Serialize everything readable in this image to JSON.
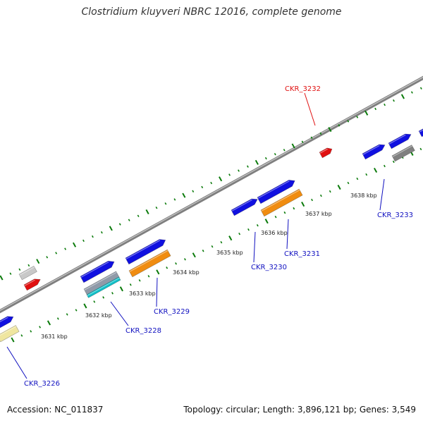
{
  "title": "Clostridium kluyveri NBRC 12016, complete genome",
  "footer": {
    "accession": "Accession: NC_011837",
    "info": "Topology: circular; Length: 3,896,121 bp; Genes: 3,549"
  },
  "kbp_labels": [
    "3631 kbp",
    "3632 kbp",
    "3633 kbp",
    "3634 kbp",
    "3635 kbp",
    "3636 kbp",
    "3637 kbp",
    "3638 kbp"
  ],
  "gene_labels": [
    "CKR_3226",
    "CKR_3228",
    "CKR_3229",
    "CKR_3230",
    "CKR_3231",
    "CKR_3232",
    "CKR_3233"
  ],
  "colors": {
    "backbone": "#7f7f7f",
    "tick": "#0a7a0a",
    "gene_blue": "#1010e0",
    "gene_orange": "#f08c10",
    "gene_red": "#e01010",
    "gene_cyan": "#10c0c8",
    "gene_gray": "#808080",
    "gene_yellow": "#efe6a0",
    "label_blue": "#1010c0",
    "label_red": "#e01010"
  }
}
